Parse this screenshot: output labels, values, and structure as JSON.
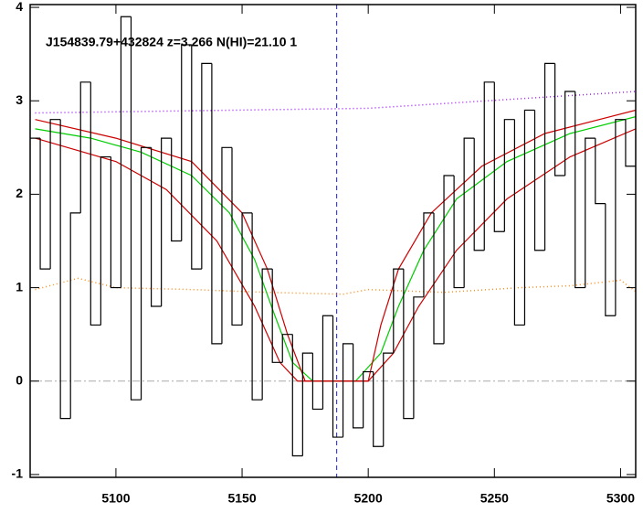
{
  "chart_data": {
    "type": "spectrum",
    "title": "J154839.79+432824 z=3.266 N(HI)=21.10 1",
    "xlim": [
      5066,
      5306
    ],
    "ylim": [
      -1.03,
      4.03
    ],
    "xticks": [
      5100,
      5150,
      5200,
      5250,
      5300
    ],
    "yticks": [
      -1,
      0,
      1,
      2,
      3,
      4
    ],
    "marker_x": 5187.5,
    "zero_line": 0,
    "flux": {
      "color": "#000000",
      "x": [
        5068,
        5072,
        5076,
        5080,
        5084,
        5088,
        5092,
        5096,
        5100,
        5104,
        5108,
        5112,
        5116,
        5120,
        5124,
        5128,
        5132,
        5136,
        5140,
        5144,
        5148,
        5152,
        5156,
        5160,
        5164,
        5168,
        5172,
        5176,
        5180,
        5184,
        5188,
        5192,
        5196,
        5200,
        5204,
        5208,
        5212,
        5216,
        5220,
        5224,
        5228,
        5232,
        5236,
        5240,
        5244,
        5248,
        5252,
        5256,
        5260,
        5264,
        5268,
        5272,
        5276,
        5280,
        5284,
        5288,
        5292,
        5296,
        5300,
        5304
      ],
      "values": [
        2.6,
        1.2,
        2.8,
        -0.4,
        1.8,
        3.2,
        0.6,
        2.4,
        1.0,
        3.9,
        -0.2,
        2.5,
        0.8,
        2.6,
        1.5,
        3.6,
        1.2,
        3.4,
        0.4,
        2.5,
        0.6,
        1.8,
        -0.2,
        1.2,
        0.2,
        0.5,
        -0.8,
        0.3,
        -0.3,
        0.7,
        -0.6,
        0.4,
        -0.5,
        0.1,
        -0.7,
        0.3,
        1.2,
        -0.4,
        0.9,
        1.8,
        0.4,
        2.2,
        1.0,
        2.6,
        1.4,
        3.2,
        1.6,
        2.8,
        0.6,
        2.9,
        1.4,
        3.4,
        2.2,
        3.1,
        1.0,
        2.6,
        1.9,
        0.7,
        2.8,
        2.3
      ]
    },
    "series": [
      {
        "style": "dotted",
        "color": "#a020f0",
        "x": [
          5068,
          5200,
          5306
        ],
        "values": [
          2.87,
          2.92,
          3.1
        ]
      },
      {
        "style": "dotted",
        "color": "#ff8c1a",
        "x": [
          5068,
          5085,
          5100,
          5130,
          5160,
          5190,
          5200,
          5230,
          5260,
          5280,
          5300,
          5306
        ],
        "values": [
          0.98,
          1.1,
          1.0,
          0.98,
          0.95,
          0.93,
          0.98,
          0.95,
          1.0,
          1.02,
          1.08,
          0.96
        ]
      },
      {
        "style": "solid",
        "color": "#00cc00",
        "x": [
          5068,
          5090,
          5110,
          5130,
          5145,
          5155,
          5163,
          5170,
          5178,
          5195,
          5205,
          5212,
          5222,
          5235,
          5255,
          5280,
          5306
        ],
        "values": [
          2.7,
          2.6,
          2.45,
          2.2,
          1.8,
          1.3,
          0.7,
          0.2,
          0,
          0,
          0.3,
          0.8,
          1.4,
          1.95,
          2.35,
          2.65,
          2.83
        ]
      },
      {
        "style": "solid",
        "color": "#cc0000",
        "x": [
          5068,
          5100,
          5130,
          5150,
          5160,
          5168,
          5175,
          5200,
          5205,
          5212,
          5225,
          5245,
          5270,
          5306
        ],
        "values": [
          2.8,
          2.6,
          2.35,
          1.8,
          1.2,
          0.5,
          0,
          0,
          0.6,
          1.2,
          1.8,
          2.3,
          2.65,
          2.9
        ]
      },
      {
        "style": "solid",
        "color": "#cc0000",
        "x": [
          5068,
          5100,
          5120,
          5140,
          5155,
          5165,
          5172,
          5200,
          5210,
          5220,
          5235,
          5255,
          5280,
          5306
        ],
        "values": [
          2.6,
          2.35,
          2.05,
          1.5,
          0.8,
          0.2,
          0,
          0,
          0.3,
          0.8,
          1.4,
          1.95,
          2.4,
          2.7
        ]
      }
    ]
  }
}
